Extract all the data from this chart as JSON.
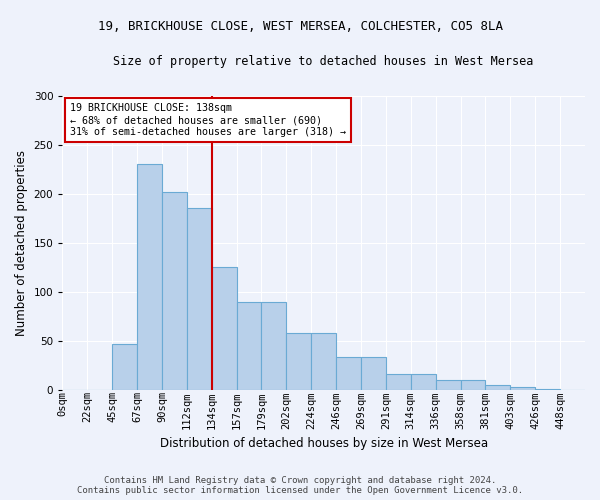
{
  "title": "19, BRICKHOUSE CLOSE, WEST MERSEA, COLCHESTER, CO5 8LA",
  "subtitle": "Size of property relative to detached houses in West Mersea",
  "xlabel": "Distribution of detached houses by size in West Mersea",
  "ylabel": "Number of detached properties",
  "footer_line1": "Contains HM Land Registry data © Crown copyright and database right 2024.",
  "footer_line2": "Contains public sector information licensed under the Open Government Licence v3.0.",
  "bar_labels": [
    "0sqm",
    "22sqm",
    "45sqm",
    "67sqm",
    "90sqm",
    "112sqm",
    "134sqm",
    "157sqm",
    "179sqm",
    "202sqm",
    "224sqm",
    "246sqm",
    "269sqm",
    "291sqm",
    "314sqm",
    "336sqm",
    "358sqm",
    "381sqm",
    "403sqm",
    "426sqm",
    "448sqm"
  ],
  "bar_values": [
    0,
    0,
    47,
    230,
    202,
    185,
    125,
    90,
    89,
    58,
    58,
    33,
    33,
    16,
    16,
    10,
    10,
    5,
    3,
    1,
    0
  ],
  "bar_color": "#b8d0ea",
  "bar_edge_color": "#6aaad4",
  "annotation_text": "19 BRICKHOUSE CLOSE: 138sqm\n← 68% of detached houses are smaller (690)\n31% of semi-detached houses are larger (318) →",
  "vline_index": 6,
  "vline_color": "#cc0000",
  "annotation_box_color": "#ffffff",
  "annotation_box_edge_color": "#cc0000",
  "background_color": "#eef2fb",
  "ylim": [
    0,
    300
  ],
  "yticks": [
    0,
    50,
    100,
    150,
    200,
    250,
    300
  ],
  "grid_color": "#ffffff",
  "title_fontsize": 9,
  "subtitle_fontsize": 8.5,
  "ylabel_fontsize": 8.5,
  "xlabel_fontsize": 8.5,
  "tick_fontsize": 7.5,
  "footer_fontsize": 6.5
}
